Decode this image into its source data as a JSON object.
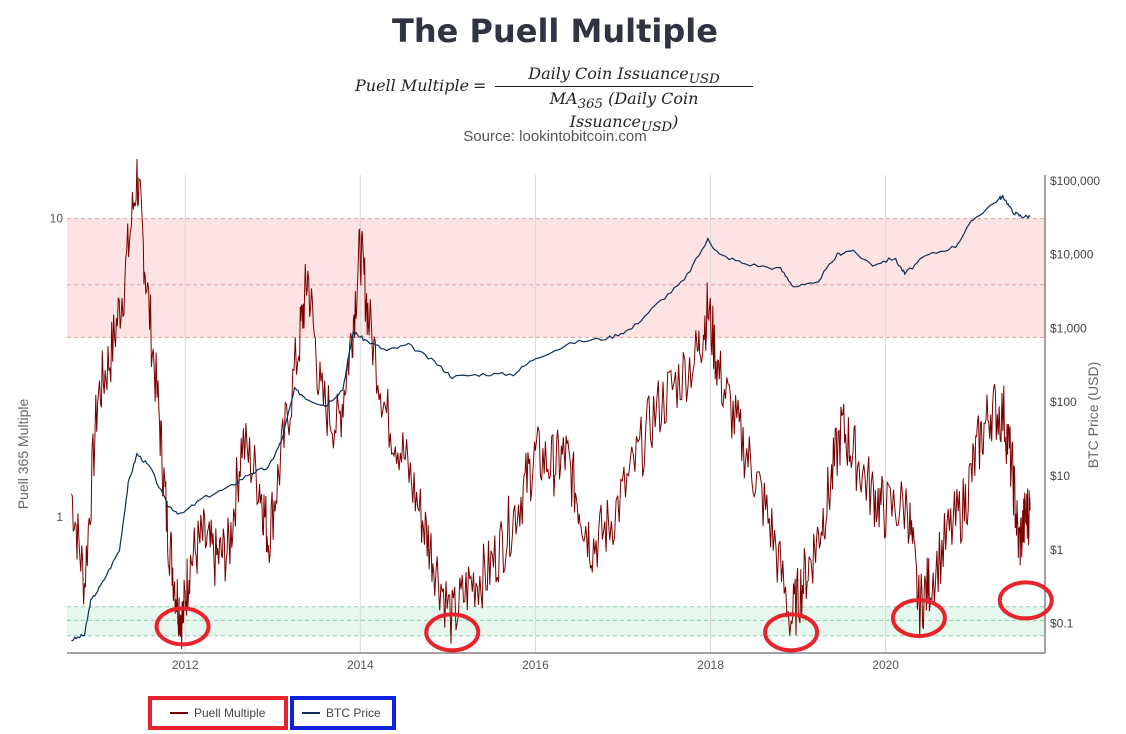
{
  "header": {
    "title": "The Puell Multiple",
    "formula_lhs": "Puell Multiple",
    "formula_eq": "=",
    "formula_numerator": "Daily Coin Issuance",
    "formula_numerator_sub": "USD",
    "formula_denominator_prefix": "MA",
    "formula_denominator_sub1": "365",
    "formula_denominator_mid": " (Daily Coin Issuance",
    "formula_denominator_sub2": "USD",
    "formula_denominator_suffix": ")",
    "source": "Source: lookintobitcoin.com"
  },
  "legend": {
    "puell_label": "Puell Multiple",
    "btc_label": "BTC Price"
  },
  "colors": {
    "puell": "#7a0000",
    "btc": "#0e2f55",
    "red_band": "#fde3e3",
    "green_band": "#e6f8ee",
    "annotation_circle": "#e8232b",
    "legend_btc_box": "#1020e0"
  },
  "chart_data": {
    "type": "line",
    "x_range": [
      "2010-08",
      "2021-08"
    ],
    "x_ticks": [
      "2012",
      "2014",
      "2016",
      "2018",
      "2020"
    ],
    "y_left": {
      "label": "Puell 365 Multiple",
      "scale": "log",
      "range": [
        0.35,
        14
      ],
      "ticks": [
        "10",
        "1"
      ]
    },
    "y_right": {
      "label": "BTC Price (USD)",
      "scale": "log",
      "range": [
        0.04,
        120000
      ],
      "ticks": [
        "$100,000",
        "$10,000",
        "$1,000",
        "$100",
        "$10",
        "$1",
        "$0.1"
      ]
    },
    "bands": [
      {
        "name": "red",
        "from": 4.0,
        "to": 10.0,
        "mid": 6.0
      },
      {
        "name": "green",
        "from": 0.5,
        "to": 0.4,
        "mid": 0.45
      }
    ],
    "series": [
      {
        "name": "Puell Multiple",
        "axis": "left",
        "points": [
          [
            2010.7,
            1.2
          ],
          [
            2010.85,
            0.6
          ],
          [
            2011.0,
            2.5
          ],
          [
            2011.15,
            3.5
          ],
          [
            2011.3,
            6.0
          ],
          [
            2011.45,
            14.0
          ],
          [
            2011.55,
            6.5
          ],
          [
            2011.7,
            2.2
          ],
          [
            2011.8,
            0.9
          ],
          [
            2011.9,
            0.55
          ],
          [
            2011.97,
            0.45
          ],
          [
            2012.05,
            0.7
          ],
          [
            2012.2,
            0.85
          ],
          [
            2012.35,
            0.72
          ],
          [
            2012.5,
            0.78
          ],
          [
            2012.65,
            1.8
          ],
          [
            2012.85,
            1.3
          ],
          [
            2012.95,
            0.85
          ],
          [
            2013.1,
            1.6
          ],
          [
            2013.3,
            3.8
          ],
          [
            2013.4,
            6.5
          ],
          [
            2013.55,
            2.5
          ],
          [
            2013.75,
            2.0
          ],
          [
            2013.9,
            4.0
          ],
          [
            2014.0,
            8.0
          ],
          [
            2014.1,
            4.5
          ],
          [
            2014.3,
            2.2
          ],
          [
            2014.5,
            1.6
          ],
          [
            2014.7,
            1.0
          ],
          [
            2014.85,
            0.7
          ],
          [
            2015.05,
            0.45
          ],
          [
            2015.25,
            0.6
          ],
          [
            2015.45,
            0.65
          ],
          [
            2015.65,
            0.85
          ],
          [
            2015.85,
            1.2
          ],
          [
            2016.0,
            1.6
          ],
          [
            2016.2,
            1.5
          ],
          [
            2016.35,
            1.6
          ],
          [
            2016.5,
            1.1
          ],
          [
            2016.65,
            0.8
          ],
          [
            2016.85,
            0.95
          ],
          [
            2017.1,
            1.4
          ],
          [
            2017.35,
            2.2
          ],
          [
            2017.6,
            2.8
          ],
          [
            2017.85,
            3.5
          ],
          [
            2017.97,
            5.0
          ],
          [
            2018.1,
            3.0
          ],
          [
            2018.3,
            2.0
          ],
          [
            2018.5,
            1.4
          ],
          [
            2018.7,
            0.9
          ],
          [
            2018.92,
            0.45
          ],
          [
            2019.05,
            0.6
          ],
          [
            2019.2,
            0.8
          ],
          [
            2019.35,
            1.2
          ],
          [
            2019.5,
            2.0
          ],
          [
            2019.65,
            1.6
          ],
          [
            2019.85,
            1.2
          ],
          [
            2020.0,
            1.05
          ],
          [
            2020.25,
            1.1
          ],
          [
            2020.38,
            0.5
          ],
          [
            2020.5,
            0.6
          ],
          [
            2020.7,
            0.85
          ],
          [
            2020.9,
            1.1
          ],
          [
            2021.05,
            1.7
          ],
          [
            2021.2,
            2.3
          ],
          [
            2021.35,
            2.2
          ],
          [
            2021.45,
            1.4
          ],
          [
            2021.52,
            0.8
          ],
          [
            2021.6,
            1.0
          ],
          [
            2021.65,
            1.05
          ]
        ]
      },
      {
        "name": "BTC Price",
        "axis": "right",
        "points": [
          [
            2010.7,
            0.06
          ],
          [
            2010.85,
            0.07
          ],
          [
            2010.92,
            0.2
          ],
          [
            2011.05,
            0.35
          ],
          [
            2011.25,
            1.0
          ],
          [
            2011.35,
            8.0
          ],
          [
            2011.45,
            20.0
          ],
          [
            2011.6,
            13.0
          ],
          [
            2011.8,
            4.0
          ],
          [
            2011.95,
            3.0
          ],
          [
            2012.2,
            5.0
          ],
          [
            2012.5,
            7.0
          ],
          [
            2012.75,
            11.0
          ],
          [
            2012.95,
            13.0
          ],
          [
            2013.1,
            30.0
          ],
          [
            2013.25,
            150.0
          ],
          [
            2013.4,
            110.0
          ],
          [
            2013.6,
            90.0
          ],
          [
            2013.8,
            150.0
          ],
          [
            2013.92,
            900.0
          ],
          [
            2014.05,
            700.0
          ],
          [
            2014.3,
            500.0
          ],
          [
            2014.55,
            600.0
          ],
          [
            2014.85,
            350.0
          ],
          [
            2015.05,
            220.0
          ],
          [
            2015.4,
            240.0
          ],
          [
            2015.75,
            240.0
          ],
          [
            2016.0,
            400.0
          ],
          [
            2016.45,
            650.0
          ],
          [
            2016.85,
            750.0
          ],
          [
            2017.1,
            1000.0
          ],
          [
            2017.4,
            2200.0
          ],
          [
            2017.7,
            4500.0
          ],
          [
            2017.97,
            16000.0
          ],
          [
            2018.1,
            10000.0
          ],
          [
            2018.4,
            7500.0
          ],
          [
            2018.8,
            6400.0
          ],
          [
            2018.95,
            3700.0
          ],
          [
            2019.2,
            4000.0
          ],
          [
            2019.45,
            10000.0
          ],
          [
            2019.6,
            11500.0
          ],
          [
            2019.85,
            7300.0
          ],
          [
            2020.1,
            9000.0
          ],
          [
            2020.22,
            5500.0
          ],
          [
            2020.45,
            9500.0
          ],
          [
            2020.8,
            13000.0
          ],
          [
            2021.0,
            30000.0
          ],
          [
            2021.3,
            58000.0
          ],
          [
            2021.35,
            60000.0
          ],
          [
            2021.45,
            38000.0
          ],
          [
            2021.55,
            33000.0
          ],
          [
            2021.65,
            33000.0
          ]
        ]
      }
    ],
    "annotations": [
      {
        "shape": "circle",
        "x": 2011.97,
        "y": 0.45
      },
      {
        "shape": "circle",
        "x": 2015.05,
        "y": 0.43
      },
      {
        "shape": "circle",
        "x": 2018.92,
        "y": 0.43
      },
      {
        "shape": "circle",
        "x": 2020.38,
        "y": 0.48
      },
      {
        "shape": "circle",
        "x": 2021.6,
        "y": 0.55
      }
    ],
    "grid": true,
    "legend_position": "bottom-left"
  }
}
